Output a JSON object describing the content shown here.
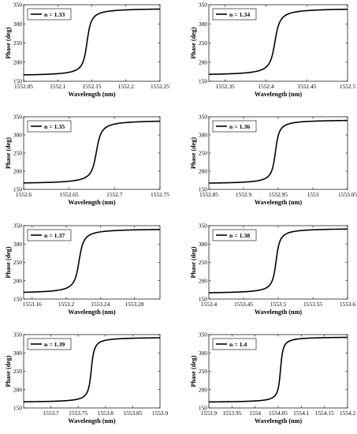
{
  "chart_data": [
    {
      "type": "line",
      "legend": "n = 1.33",
      "xlabel": "Wavelength (nm)",
      "ylabel": "Phase (deg)",
      "xlim": [
        1552.05,
        1552.25
      ],
      "ylim": [
        150,
        350
      ],
      "xticks": [
        1552.05,
        1552.1,
        1552.15,
        1552.2,
        1552.25
      ],
      "xtick_labels": [
        "1552.05",
        "1552.1",
        "1552.15",
        "1552.2",
        "1552.25"
      ],
      "yticks": [
        150,
        200,
        250,
        300,
        350
      ],
      "ytick_labels": [
        "150",
        "200",
        "250",
        "300",
        "350"
      ],
      "resonance": 1552.143,
      "phase_min": 164,
      "phase_max": 341,
      "width": 0.0045
    },
    {
      "type": "line",
      "legend": "n = 1.34",
      "xlabel": "Wavelength (nm)",
      "ylabel": "Phase (deg)",
      "xlim": [
        1552.33,
        1552.5
      ],
      "ylim": [
        150,
        350
      ],
      "xticks": [
        1552.35,
        1552.4,
        1552.45,
        1552.5
      ],
      "xtick_labels": [
        "1552.35",
        "1552.4",
        "1552.45",
        "1552.5"
      ],
      "yticks": [
        150,
        200,
        250,
        300,
        350
      ],
      "ytick_labels": [
        "150",
        "200",
        "250",
        "300",
        "350"
      ],
      "resonance": 1552.411,
      "phase_min": 165,
      "phase_max": 341,
      "width": 0.0045
    },
    {
      "type": "line",
      "legend": "n = 1.35",
      "xlabel": "Wavelength (nm)",
      "ylabel": "Phase (deg)",
      "xlim": [
        1552.6,
        1552.75
      ],
      "ylim": [
        150,
        350
      ],
      "xticks": [
        1552.6,
        1552.65,
        1552.7,
        1552.75
      ],
      "xtick_labels": [
        "1552.6",
        "1552.65",
        "1552.7",
        "1552.75"
      ],
      "yticks": [
        150,
        200,
        250,
        300,
        350
      ],
      "ytick_labels": [
        "150",
        "200",
        "250",
        "300",
        "350"
      ],
      "resonance": 1552.68,
      "phase_min": 165,
      "phase_max": 341,
      "width": 0.004
    },
    {
      "type": "line",
      "legend": "n = 1.36",
      "xlabel": "Wavelength (nm)",
      "ylabel": "Phase (deg)",
      "xlim": [
        1552.85,
        1553.05
      ],
      "ylim": [
        150,
        350
      ],
      "xticks": [
        1552.85,
        1552.9,
        1552.95,
        1553,
        1553.05
      ],
      "xtick_labels": [
        "1552.85",
        "1552.9",
        "1552.95",
        "1553",
        "1553.05"
      ],
      "yticks": [
        150,
        200,
        250,
        300,
        350
      ],
      "ytick_labels": [
        "150",
        "200",
        "250",
        "300",
        "350"
      ],
      "resonance": 1552.946,
      "phase_min": 165,
      "phase_max": 342,
      "width": 0.004
    },
    {
      "type": "line",
      "legend": "n = 1.37",
      "xlabel": "Wavelength (nm)",
      "ylabel": "Phase (deg)",
      "xlim": [
        1553.15,
        1553.31
      ],
      "ylim": [
        150,
        350
      ],
      "xticks": [
        1553.16,
        1553.2,
        1553.24,
        1553.28
      ],
      "xtick_labels": [
        "1553.16",
        "1553.2",
        "1553.24",
        "1553.28"
      ],
      "yticks": [
        150,
        200,
        250,
        300,
        350
      ],
      "ytick_labels": [
        "150",
        "200",
        "250",
        "300",
        "350"
      ],
      "resonance": 1553.215,
      "phase_min": 165,
      "phase_max": 342,
      "width": 0.004
    },
    {
      "type": "line",
      "legend": "n = 1.38",
      "xlabel": "Wavelength (nm)",
      "ylabel": "Phase (deg)",
      "xlim": [
        1553.4,
        1553.6
      ],
      "ylim": [
        150,
        350
      ],
      "xticks": [
        1553.4,
        1553.45,
        1553.5,
        1553.55,
        1553.6
      ],
      "xtick_labels": [
        "1553.4",
        "1553.45",
        "1553.5",
        "1553.55",
        "1553.6"
      ],
      "yticks": [
        150,
        200,
        250,
        300,
        350
      ],
      "ytick_labels": [
        "150",
        "200",
        "250",
        "300",
        "350"
      ],
      "resonance": 1553.497,
      "phase_min": 165,
      "phase_max": 343,
      "width": 0.004
    },
    {
      "type": "line",
      "legend": "n = 1.39",
      "xlabel": "Wavelength (nm)",
      "ylabel": "Phase (deg)",
      "xlim": [
        1553.65,
        1553.9
      ],
      "ylim": [
        150,
        350
      ],
      "xticks": [
        1553.7,
        1553.75,
        1553.8,
        1553.85,
        1553.9
      ],
      "xtick_labels": [
        "1553.7",
        "1553.75",
        "1553.8",
        "1553.85",
        "1553.9"
      ],
      "yticks": [
        150,
        200,
        250,
        300,
        350
      ],
      "ytick_labels": [
        "150",
        "200",
        "250",
        "300",
        "350"
      ],
      "resonance": 1553.774,
      "phase_min": 165,
      "phase_max": 343,
      "width": 0.004
    },
    {
      "type": "line",
      "legend": "n = 1.4",
      "xlabel": "Wavelength (nm)",
      "ylabel": "Phase (deg)",
      "xlim": [
        1553.9,
        1554.2
      ],
      "ylim": [
        150,
        350
      ],
      "xticks": [
        1553.9,
        1553.95,
        1554,
        1554.05,
        1554.1,
        1554.15,
        1554.2
      ],
      "xtick_labels": [
        "1553.9",
        "1553.95",
        "1554",
        "1554.05",
        "1554.1",
        "1554.15",
        "1554.2"
      ],
      "yticks": [
        150,
        200,
        250,
        300,
        350
      ],
      "ytick_labels": [
        "150",
        "200",
        "250",
        "300",
        "350"
      ],
      "resonance": 1554.055,
      "phase_min": 165,
      "phase_max": 344,
      "width": 0.004
    }
  ]
}
